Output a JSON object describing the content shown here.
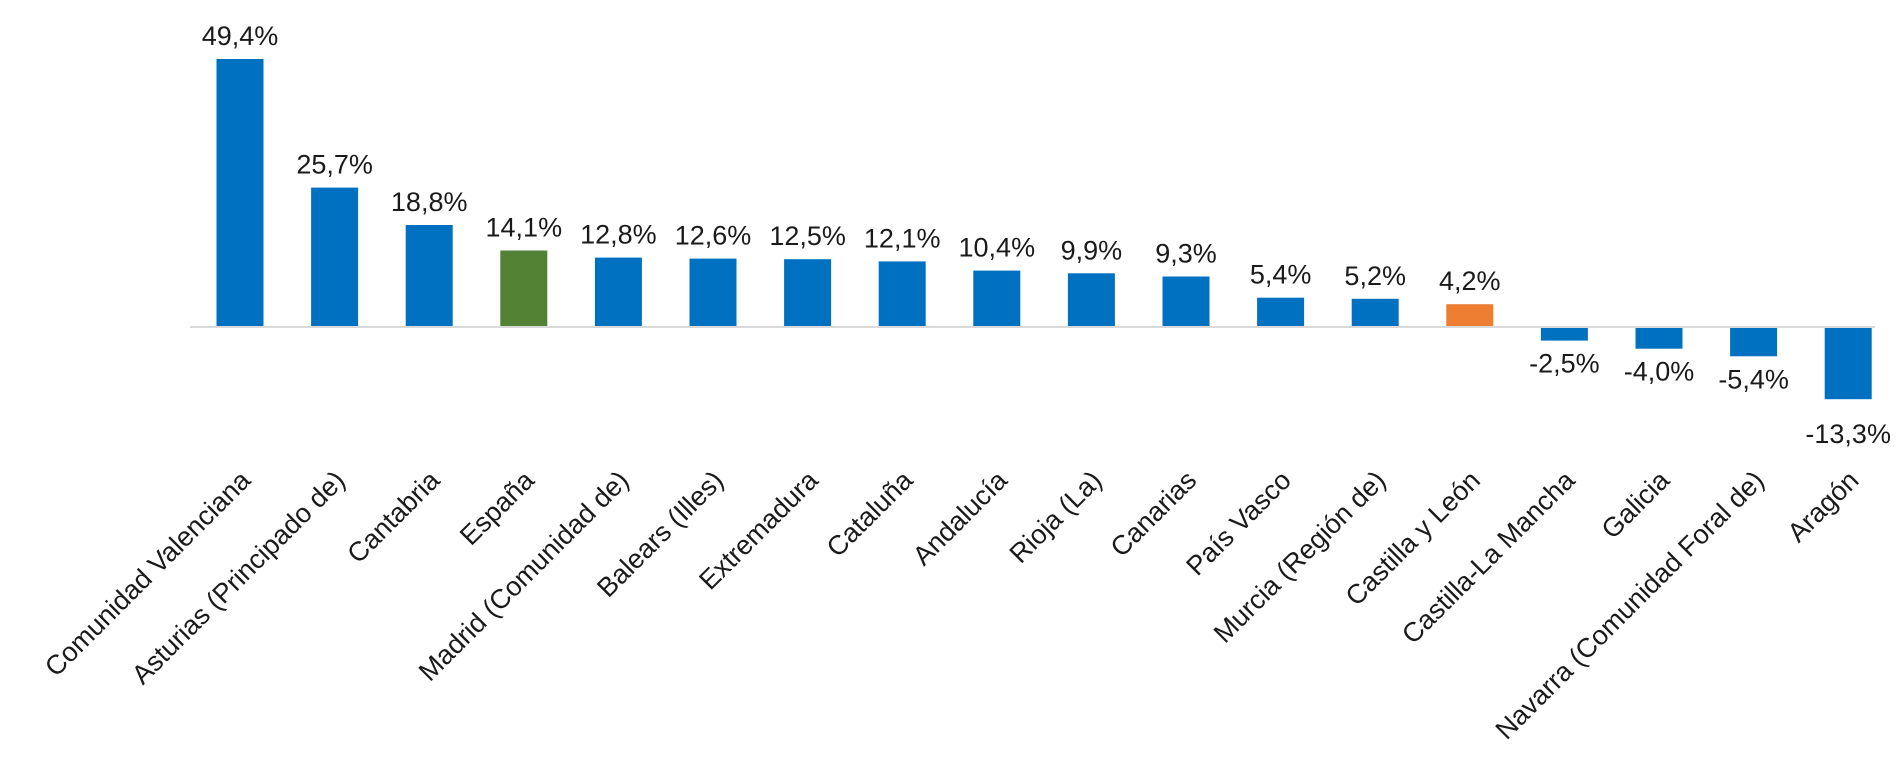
{
  "chart_data": {
    "type": "bar",
    "categories": [
      "Comunidad Valenciana",
      "Asturias (Principado de)",
      "Cantabria",
      "España",
      "Madrid (Comunidad de)",
      "Balears (Illes)",
      "Extremadura",
      "Cataluña",
      "Andalucía",
      "Rioja (La)",
      "Canarias",
      "País Vasco",
      "Murcia (Región de)",
      "Castilla y León",
      "Castilla-La Mancha",
      "Galicia",
      "Navarra (Comunidad Foral de)",
      "Aragón"
    ],
    "values": [
      49.4,
      25.7,
      18.8,
      14.1,
      12.8,
      12.6,
      12.5,
      12.1,
      10.4,
      9.9,
      9.3,
      5.4,
      5.2,
      4.2,
      -2.5,
      -4.0,
      -5.4,
      -13.3
    ],
    "data_labels": [
      "49,4%",
      "25,7%",
      "18,8%",
      "14,1%",
      "12,8%",
      "12,6%",
      "12,5%",
      "12,1%",
      "10,4%",
      "9,9%",
      "9,3%",
      "5,4%",
      "5,2%",
      "4,2%",
      "-2,5%",
      "-4,0%",
      "-5,4%",
      "-13,3%"
    ],
    "colors": [
      "#0070C0",
      "#0070C0",
      "#0070C0",
      "#548235",
      "#0070C0",
      "#0070C0",
      "#0070C0",
      "#0070C0",
      "#0070C0",
      "#0070C0",
      "#0070C0",
      "#0070C0",
      "#0070C0",
      "#ED7D31",
      "#0070C0",
      "#0070C0",
      "#0070C0",
      "#0070C0"
    ],
    "axis_line_color": "#D9D9D9",
    "ylim": [
      -13.3,
      49.4
    ],
    "grid": false,
    "legend": false
  }
}
